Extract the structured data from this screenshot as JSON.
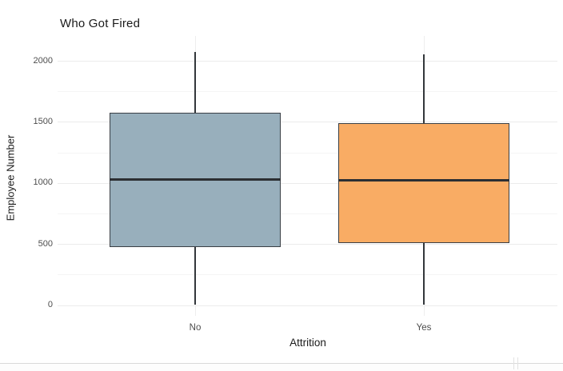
{
  "window": {
    "background": "#ffffff",
    "pane_divider_color": "#d9d9d9"
  },
  "chart_data": {
    "type": "boxplot",
    "title": "Who Got Fired",
    "xlabel": "Attrition",
    "ylabel": "Employee Number",
    "categories": [
      "No",
      "Yes"
    ],
    "y_ticks": [
      0,
      500,
      1000,
      1500,
      2000
    ],
    "y_minor_ticks": [
      250,
      750,
      1250,
      1750
    ],
    "ylim": [
      -90,
      2200
    ],
    "grid": "major+minor, no axis lines, no tick marks",
    "legend": "none",
    "series": [
      {
        "category": "No",
        "min": 1,
        "q1": 477,
        "median": 1030,
        "q3": 1575,
        "max": 2070,
        "fill": "#98AFBC"
      },
      {
        "category": "Yes",
        "min": 2,
        "q1": 510,
        "median": 1020,
        "q3": 1490,
        "max": 2050,
        "fill": "#F9AC64"
      }
    ],
    "colors": {
      "box_border": "#3a3f45",
      "median_line": "#2c2f33",
      "whisker": "#33373b",
      "grid_major": "#ebebeb",
      "grid_minor": "#f5f5f5",
      "grid_vertical": "#ededed",
      "tick_label": "#4d4d4d",
      "axis_title": "#1a1a1a",
      "title": "#1a1a1a"
    }
  }
}
